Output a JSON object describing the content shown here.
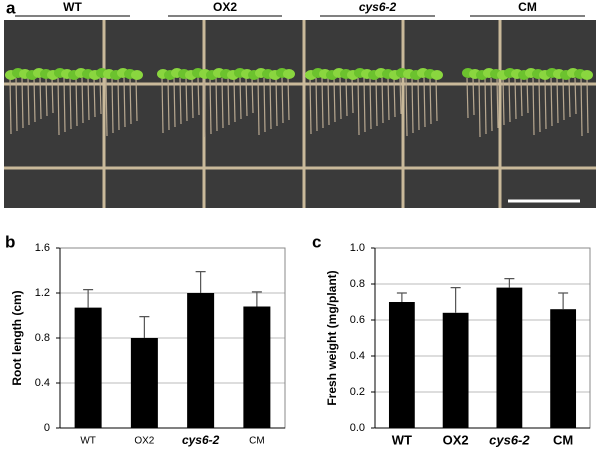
{
  "photo": {
    "label": "a",
    "groups": [
      "WT",
      "OX2",
      "cys6-2",
      "CM"
    ]
  },
  "chart_data": [
    {
      "type": "bar",
      "panel_label": "b",
      "y_label": "Root length (cm)",
      "categories": [
        "WT",
        "OX2",
        "cys6-2",
        "CM"
      ],
      "values": [
        1.07,
        0.8,
        1.2,
        1.08
      ],
      "errors": [
        0.16,
        0.19,
        0.19,
        0.13
      ],
      "color": "#000000",
      "ylim": [
        0,
        1.6
      ],
      "yticks": [
        0,
        0.4,
        0.8,
        1.2,
        1.6
      ],
      "grid": true
    },
    {
      "type": "bar",
      "panel_label": "c",
      "y_label": "Fresh weight (mg/plant)",
      "categories": [
        "WT",
        "OX2",
        "cys6-2",
        "CM"
      ],
      "values": [
        0.7,
        0.64,
        0.78,
        0.66
      ],
      "errors": [
        0.05,
        0.14,
        0.05,
        0.09
      ],
      "color": "#000000",
      "ylim": [
        0,
        1
      ],
      "yticks": [
        {
          "value": 0,
          "label": "0.0"
        },
        0.2,
        0.4,
        0.6,
        0.8,
        {
          "value": 1,
          "label": "1.0"
        }
      ],
      "grid": true
    }
  ]
}
